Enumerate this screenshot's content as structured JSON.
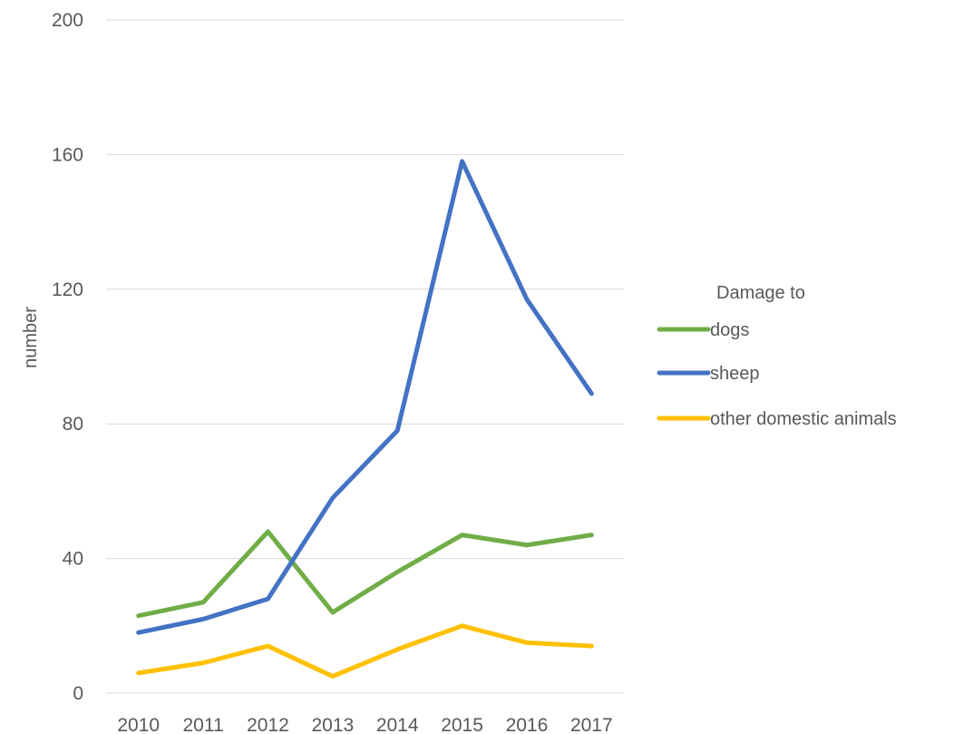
{
  "chart_data": {
    "type": "line",
    "title": "",
    "xlabel": "",
    "ylabel": "number",
    "categories": [
      "2010",
      "2011",
      "2012",
      "2013",
      "2014",
      "2015",
      "2016",
      "2017"
    ],
    "ylim": [
      0,
      200
    ],
    "yticks": [
      0,
      40,
      80,
      120,
      160,
      200
    ],
    "grid": true,
    "legend": {
      "title": "Damage to",
      "position": "right"
    },
    "series": [
      {
        "name": "dogs",
        "color": "#70ad47",
        "values": [
          23,
          27,
          48,
          24,
          36,
          47,
          44,
          47
        ]
      },
      {
        "name": "sheep",
        "color": "#4472c4",
        "values": [
          18,
          22,
          28,
          58,
          78,
          158,
          117,
          89
        ]
      },
      {
        "name": "other domestic animals",
        "color": "#ffc000",
        "values": [
          6,
          9,
          14,
          5,
          13,
          20,
          15,
          14
        ]
      }
    ]
  }
}
